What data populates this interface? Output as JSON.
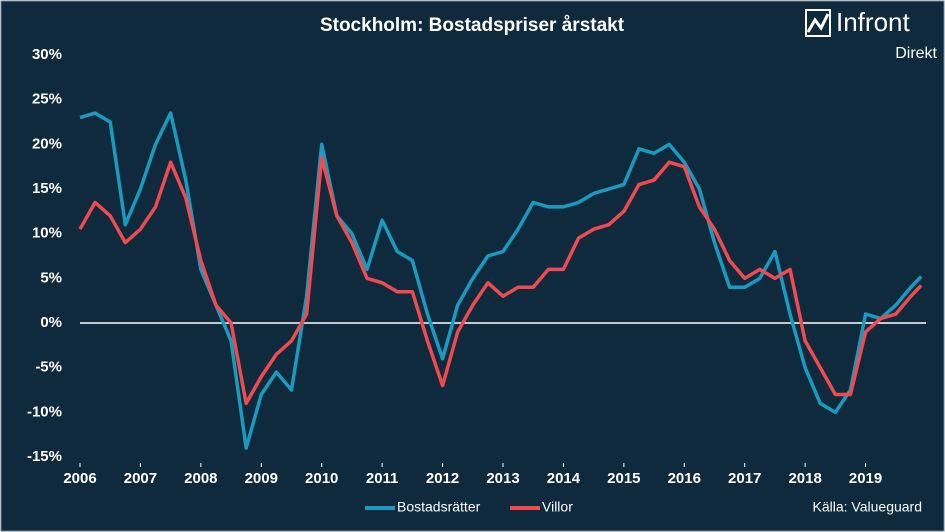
{
  "chart_data": {
    "type": "line",
    "title": "Stockholm: Bostadspriser årstakt",
    "brand": "Infront",
    "brand_sub": "Direkt",
    "source": "Källa:  Valueguard",
    "x": [
      2006,
      2006.25,
      2006.5,
      2006.75,
      2007,
      2007.25,
      2007.5,
      2007.75,
      2008,
      2008.25,
      2008.5,
      2008.75,
      2009,
      2009.25,
      2009.5,
      2009.75,
      2010,
      2010.25,
      2010.5,
      2010.75,
      2011,
      2011.25,
      2011.5,
      2011.75,
      2012,
      2012.25,
      2012.5,
      2012.75,
      2013,
      2013.25,
      2013.5,
      2013.75,
      2014,
      2014.25,
      2014.5,
      2014.75,
      2015,
      2015.25,
      2015.5,
      2015.75,
      2016,
      2016.25,
      2016.5,
      2016.75,
      2017,
      2017.25,
      2017.5,
      2017.75,
      2018,
      2018.25,
      2018.5,
      2018.75,
      2019,
      2019.25,
      2019.5,
      2019.75,
      2019.92
    ],
    "series": [
      {
        "name": "Bostadsrätter",
        "color": "#1b9ac0",
        "values": [
          23,
          23.5,
          22.5,
          11,
          15,
          20,
          23.5,
          16,
          6,
          2,
          -2,
          -14,
          -8,
          -5.5,
          -7.5,
          3,
          20,
          12,
          10,
          6,
          11.5,
          8,
          7,
          1,
          -4,
          2,
          5,
          7.5,
          8,
          10.5,
          13.5,
          13,
          13,
          13.5,
          14.5,
          15,
          15.5,
          19.5,
          19,
          20,
          18,
          15,
          9,
          4,
          4,
          5,
          8,
          1,
          -5,
          -9,
          -10,
          -7.5,
          1,
          0.5,
          2,
          4,
          5.2
        ]
      },
      {
        "name": "Villor",
        "color": "#ee4a4f",
        "values": [
          10.5,
          13.5,
          12,
          9,
          10.5,
          13,
          18,
          14,
          7,
          2,
          0,
          -9,
          -6,
          -3.5,
          -2,
          1,
          18.5,
          12,
          9,
          5,
          4.5,
          3.5,
          3.5,
          -2,
          -7,
          -1,
          2,
          4.5,
          3,
          4,
          4,
          6,
          6,
          9.5,
          10.5,
          11,
          12.5,
          15.5,
          16,
          18,
          17.5,
          13,
          10.5,
          7,
          5,
          6,
          5,
          6,
          -2,
          -5,
          -8,
          -8,
          -1,
          0.5,
          1,
          3,
          4.2
        ]
      }
    ],
    "xlim": [
      2006,
      2020
    ],
    "xticks": [
      2006,
      2007,
      2008,
      2009,
      2010,
      2011,
      2012,
      2013,
      2014,
      2015,
      2016,
      2017,
      2018,
      2019
    ],
    "ylim": [
      -15,
      30
    ],
    "yticks": [
      {
        "value": 30,
        "label": "30%"
      },
      {
        "value": 25,
        "label": "25%"
      },
      {
        "value": 20,
        "label": "20%"
      },
      {
        "value": 15,
        "label": "15%"
      },
      {
        "value": 10,
        "label": "10%"
      },
      {
        "value": 5,
        "label": "5%"
      },
      {
        "value": 0,
        "label": "0%"
      },
      {
        "value": -5,
        "label": "-5%"
      },
      {
        "value": -10,
        "label": "-10%"
      },
      {
        "value": -15,
        "label": "-15%"
      }
    ]
  }
}
